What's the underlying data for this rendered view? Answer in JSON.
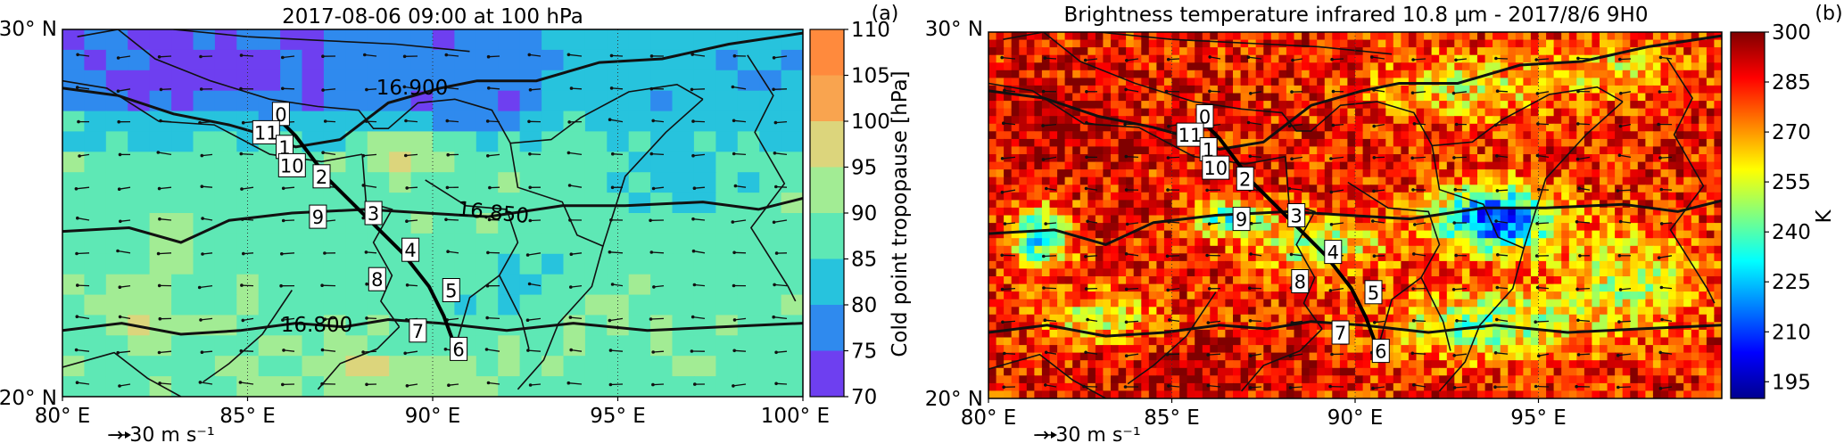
{
  "chart_data": [
    {
      "type": "heatmap",
      "panel_letter": "(a)",
      "title": "2017-08-06 09:00 at 100 hPa",
      "x_tick_labels": [
        "80° E",
        "85° E",
        "90° E",
        "95° E",
        "100° E"
      ],
      "x_ticks": [
        80,
        85,
        90,
        95,
        100
      ],
      "xlim": [
        80,
        100
      ],
      "y_tick_labels": [
        "20° N",
        "30° N"
      ],
      "y_ticks": [
        20,
        30
      ],
      "ylim": [
        20,
        30
      ],
      "colorbar": {
        "label": "Cold point tropopause [hPa]",
        "tick_labels": [
          "70",
          "75",
          "80",
          "85",
          "90",
          "95",
          "100",
          "105",
          "110"
        ],
        "range": [
          70,
          110
        ],
        "levels": [
          70,
          75,
          80,
          85,
          90,
          95,
          100,
          105,
          110
        ],
        "colors": [
          "#6e3ff0",
          "#2f8aee",
          "#27c3dd",
          "#5ee8b5",
          "#a2ec94",
          "#dcd57c",
          "#f9a44f",
          "#ff8a3d",
          "#f2421d"
        ]
      },
      "contours": [
        {
          "label": "16.900",
          "level": 16.9
        },
        {
          "label": "16.850",
          "level": 16.85
        },
        {
          "label": "16.800",
          "level": 16.8
        }
      ],
      "wind_reference": "→ 30 m s⁻¹",
      "trajectory": {
        "points": [
          {
            "label": "0",
            "x": 85.9,
            "y": 27.7
          },
          {
            "label": "11",
            "x": 85.5,
            "y": 27.2
          },
          {
            "label": "1",
            "x": 86.0,
            "y": 26.8
          },
          {
            "label": "10",
            "x": 86.2,
            "y": 26.3
          },
          {
            "label": "2",
            "x": 87.0,
            "y": 26.0
          },
          {
            "label": "9",
            "x": 86.9,
            "y": 24.9
          },
          {
            "label": "3",
            "x": 88.4,
            "y": 25.0
          },
          {
            "label": "4",
            "x": 89.4,
            "y": 24.0
          },
          {
            "label": "8",
            "x": 88.5,
            "y": 23.2
          },
          {
            "label": "5",
            "x": 90.5,
            "y": 22.9
          },
          {
            "label": "7",
            "x": 89.6,
            "y": 21.8
          },
          {
            "label": "6",
            "x": 90.7,
            "y": 21.3
          }
        ]
      }
    },
    {
      "type": "heatmap",
      "panel_letter": "(b)",
      "title": "Brightness temperature infrared 10.8 µm - 2017/8/6 9H0",
      "x_tick_labels": [
        "80° E",
        "85° E",
        "90° E",
        "95° E"
      ],
      "x_ticks": [
        80,
        85,
        90,
        95
      ],
      "xlim": [
        80,
        100
      ],
      "y_tick_labels": [
        "20° N",
        "30° N"
      ],
      "y_ticks": [
        20,
        30
      ],
      "ylim": [
        20,
        30
      ],
      "colorbar": {
        "label": "K",
        "tick_labels": [
          "195",
          "210",
          "225",
          "240",
          "255",
          "270",
          "285",
          "300"
        ],
        "range": [
          190,
          300
        ],
        "colormap": "jet"
      },
      "wind_reference": "→ 30 m s⁻¹",
      "trajectory": {
        "points": [
          {
            "label": "0",
            "x": 85.9,
            "y": 27.7
          },
          {
            "label": "11",
            "x": 85.5,
            "y": 27.2
          },
          {
            "label": "1",
            "x": 86.0,
            "y": 26.8
          },
          {
            "label": "10",
            "x": 86.2,
            "y": 26.3
          },
          {
            "label": "2",
            "x": 87.0,
            "y": 26.0
          },
          {
            "label": "9",
            "x": 86.9,
            "y": 24.9
          },
          {
            "label": "3",
            "x": 88.4,
            "y": 25.0
          },
          {
            "label": "4",
            "x": 89.4,
            "y": 24.0
          },
          {
            "label": "8",
            "x": 88.5,
            "y": 23.2
          },
          {
            "label": "5",
            "x": 90.5,
            "y": 22.9
          },
          {
            "label": "7",
            "x": 89.6,
            "y": 21.8
          },
          {
            "label": "6",
            "x": 90.7,
            "y": 21.3
          }
        ]
      }
    }
  ]
}
